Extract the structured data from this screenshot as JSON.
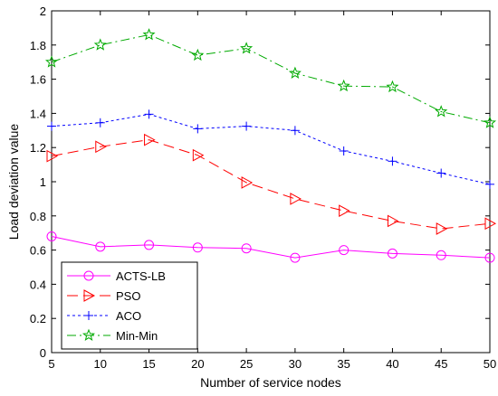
{
  "chart_data": {
    "type": "line",
    "xlabel": "Number of service nodes",
    "ylabel": "Load deviation value",
    "x": [
      5,
      10,
      15,
      20,
      25,
      30,
      35,
      40,
      45,
      50
    ],
    "xlim": [
      5,
      50
    ],
    "ylim": [
      0,
      2
    ],
    "xticks": [
      5,
      10,
      15,
      20,
      25,
      30,
      35,
      40,
      45,
      50
    ],
    "yticks": [
      0,
      0.2,
      0.4,
      0.6,
      0.8,
      1,
      1.2,
      1.4,
      1.6,
      1.8,
      2
    ],
    "grid": false,
    "legend_position": "bottom-left",
    "series": [
      {
        "name": "ACTS-LB",
        "color": "#ff00ff",
        "marker": "circle",
        "dash": "solid",
        "values": [
          0.68,
          0.62,
          0.63,
          0.615,
          0.61,
          0.555,
          0.6,
          0.58,
          0.57,
          0.555
        ]
      },
      {
        "name": "PSO",
        "color": "#ff0000",
        "marker": "triangle-right",
        "dash": "dashed",
        "values": [
          1.15,
          1.205,
          1.245,
          1.155,
          0.995,
          0.9,
          0.83,
          0.77,
          0.725,
          0.755
        ]
      },
      {
        "name": "ACO",
        "color": "#0000ff",
        "marker": "plus",
        "dash": "dotted",
        "values": [
          1.325,
          1.345,
          1.395,
          1.31,
          1.325,
          1.3,
          1.18,
          1.12,
          1.05,
          0.985
        ]
      },
      {
        "name": "Min-Min",
        "color": "#00aa00",
        "marker": "star",
        "dash": "dashdot",
        "values": [
          1.7,
          1.8,
          1.86,
          1.74,
          1.78,
          1.635,
          1.56,
          1.555,
          1.41,
          1.345
        ]
      }
    ]
  }
}
